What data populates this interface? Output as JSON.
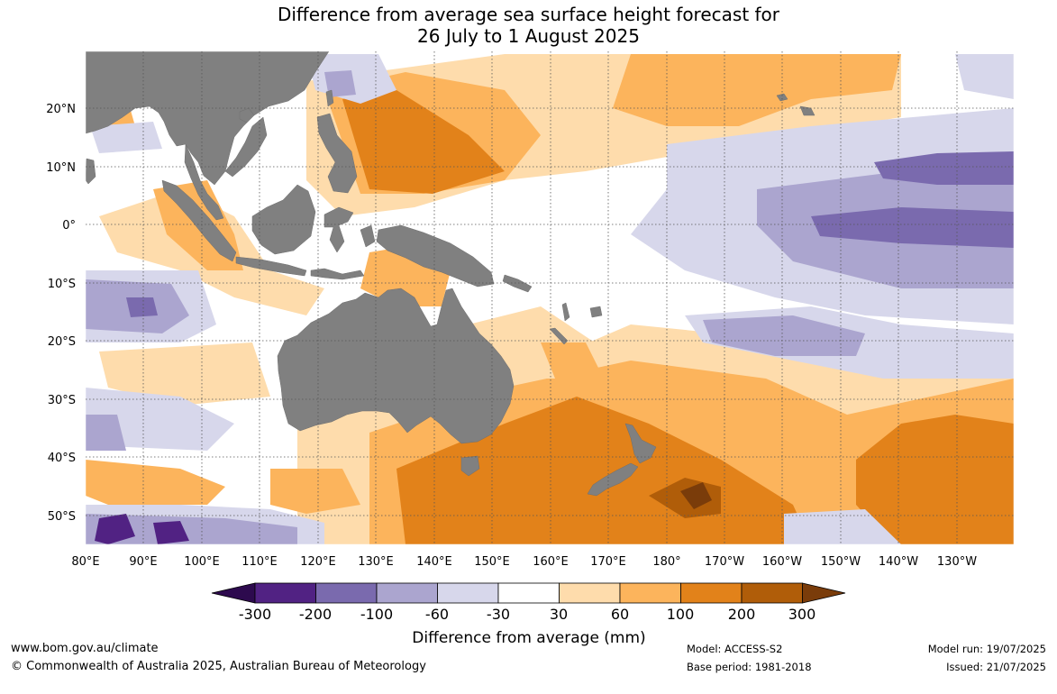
{
  "title": {
    "line1": "Difference from average sea surface height forecast for",
    "line2": "26 July to 1 August 2025"
  },
  "map": {
    "lat_labels": [
      "20°N",
      "10°N",
      "0°",
      "10°S",
      "20°S",
      "30°S",
      "40°S",
      "50°S"
    ],
    "lon_labels": [
      "80°E",
      "90°E",
      "100°E",
      "110°E",
      "120°E",
      "130°E",
      "140°E",
      "150°E",
      "160°E",
      "170°E",
      "180°",
      "170°W",
      "160°W",
      "150°W",
      "140°W",
      "130°W"
    ],
    "colors": {
      "land": "#808080",
      "ocean": "#ffffff",
      "grid": "#555555"
    }
  },
  "legend": {
    "title": "Difference from average (mm)",
    "tick_labels": [
      "-300",
      "-200",
      "-100",
      "-60",
      "-30",
      "30",
      "60",
      "100",
      "200",
      "300"
    ],
    "bins": [
      {
        "color": "#2d0a4e"
      },
      {
        "color": "#512283"
      },
      {
        "color": "#7a6aae"
      },
      {
        "color": "#aba5cf"
      },
      {
        "color": "#d7d7eb"
      },
      {
        "color": "#ffffff"
      },
      {
        "color": "#fedcac"
      },
      {
        "color": "#fcb45c"
      },
      {
        "color": "#e2821a"
      },
      {
        "color": "#b05d09"
      },
      {
        "color": "#7a3c0a"
      }
    ]
  },
  "footer": {
    "url": "www.bom.gov.au/climate",
    "copyright": "© Commonwealth of Australia 2025, Australian Bureau of Meteorology",
    "model": "Model: ACCESS-S2",
    "base_period": "Base period: 1981-2018",
    "model_run": "Model run: 19/07/2025",
    "issued": "Issued: 21/07/2025"
  }
}
